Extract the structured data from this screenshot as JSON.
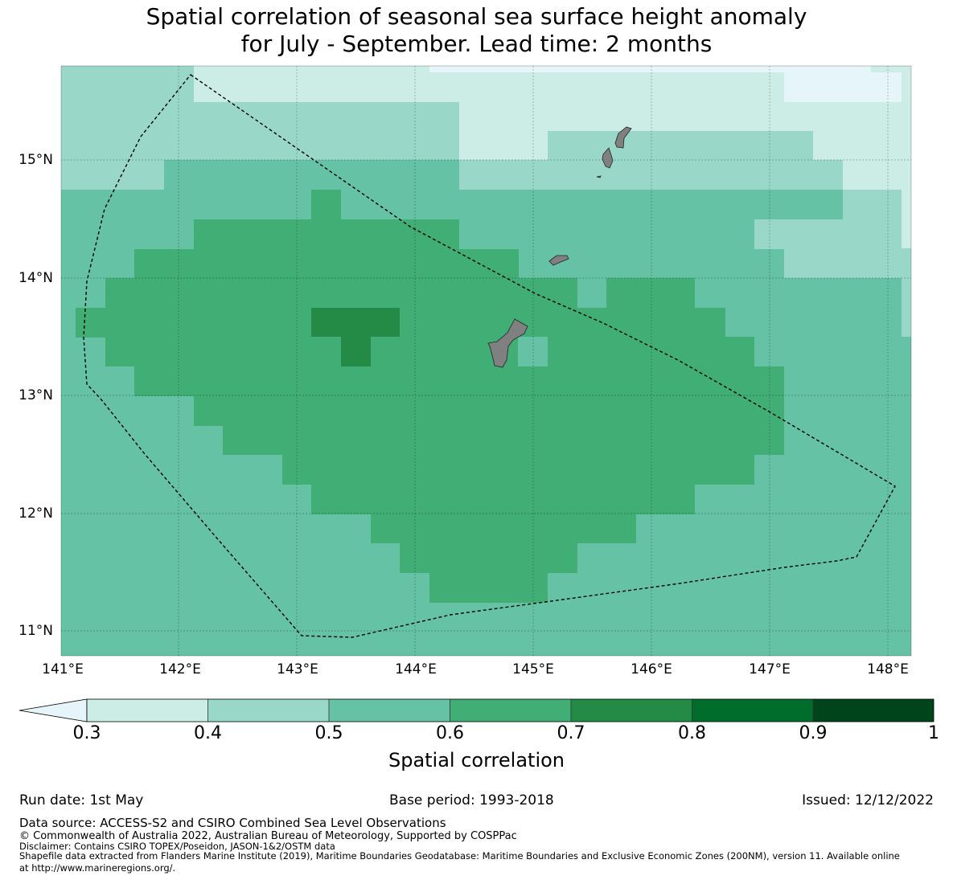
{
  "title_line1": "Spatial correlation of seasonal sea surface height anomaly",
  "title_line2": "for July - September. Lead time: 2 months",
  "map": {
    "lon_range": [
      141.0,
      148.2
    ],
    "lat_range": [
      10.8,
      15.8
    ],
    "lon_ticks": [
      "141°E",
      "142°E",
      "143°E",
      "144°E",
      "145°E",
      "146°E",
      "147°E",
      "148°E"
    ],
    "lat_ticks": [
      "15°N",
      "14°N",
      "13°N",
      "12°N",
      "11°N"
    ],
    "land_color": "#808080",
    "eez_boundary": "dashed"
  },
  "colorbar": {
    "label": "Spatial correlation",
    "ticks": [
      "0.3",
      "0.4",
      "0.5",
      "0.6",
      "0.7",
      "0.8",
      "0.9",
      "1"
    ],
    "colors": [
      "#e5f5f9",
      "#ccece6",
      "#99d8c9",
      "#66c2a4",
      "#41ae76",
      "#238b45",
      "#006d2c",
      "#00441b"
    ],
    "extend": "min"
  },
  "footer": {
    "run_date": "Run date: 1st May",
    "base_period": "Base period: 1993-2018",
    "issued": "Issued: 12/12/2022",
    "data_source": "Data source: ACCESS-S2 and CSIRO Combined Sea Level Observations",
    "copyright": "© Commonwealth of Australia 2022, Australian Bureau of Meteorology, Supported by COSPPac",
    "disclaimer": "Disclaimer: Contains CSIRO TOPEX/Poseidon, JASON-1&2/OSTM data",
    "shapefile_1": "Shapefile data extracted from Flanders Marine Institute (2019), Maritime Boundaries Geodatabase: Maritime Boundaries and Exclusive Economic Zones (200NM), version 11. Available online",
    "shapefile_2": "at http://www.marineregions.org/."
  }
}
